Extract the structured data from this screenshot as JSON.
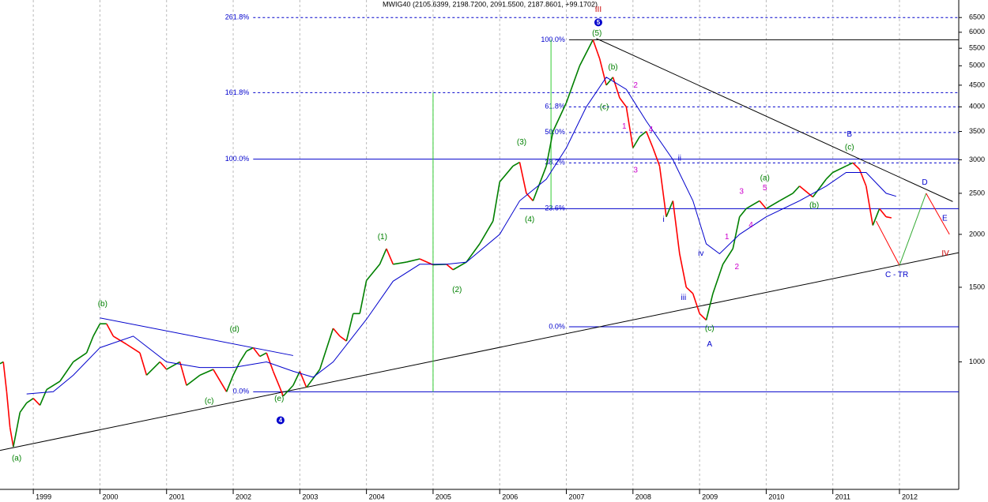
{
  "chart_data": {
    "type": "line",
    "title": "MWIG40 (2105.6399, 2198.7200, 2091.5500, 2187.8601, +99.1702)",
    "log_scale": true,
    "xlim": [
      1998.5,
      2012.89
    ],
    "ylim": [
      500,
      7150
    ],
    "xticks": [
      1999,
      2000,
      2001,
      2002,
      2003,
      2004,
      2005,
      2006,
      2007,
      2008,
      2009,
      2010,
      2011,
      2012
    ],
    "yticks": [
      1000,
      1500,
      2000,
      2500,
      3000,
      3500,
      4000,
      4500,
      5000,
      5500,
      6000,
      6500
    ],
    "grid": true,
    "series": [
      {
        "color": "#008000",
        "down_color": "#ff0000",
        "x": [
          1998.5,
          1998.55,
          1998.6,
          1998.65,
          1998.7,
          1998.8,
          1998.9,
          1999.0,
          1999.1,
          1999.2,
          1999.4,
          1999.6,
          1999.8,
          1999.9,
          2000.0,
          2000.1,
          2000.2,
          2000.4,
          2000.6,
          2000.7,
          2000.9,
          2001.0,
          2001.2,
          2001.3,
          2001.5,
          2001.7,
          2001.9,
          2002.0,
          2002.1,
          2002.2,
          2002.3,
          2002.4,
          2002.5,
          2002.6,
          2002.7,
          2002.75,
          2002.9,
          2003.0,
          2003.1,
          2003.3,
          2003.5,
          2003.6,
          2003.7,
          2003.8,
          2003.9,
          2004.0,
          2004.2,
          2004.3,
          2004.4,
          2004.6,
          2004.8,
          2005.0,
          2005.2,
          2005.3,
          2005.5,
          2005.7,
          2005.9,
          2006.0,
          2006.2,
          2006.3,
          2006.4,
          2006.5,
          2006.7,
          2006.8,
          2007.0,
          2007.2,
          2007.4,
          2007.5,
          2007.6,
          2007.7,
          2007.8,
          2007.9,
          2008.0,
          2008.1,
          2008.2,
          2008.3,
          2008.4,
          2008.5,
          2008.6,
          2008.7,
          2008.8,
          2008.9,
          2009.0,
          2009.1,
          2009.2,
          2009.35,
          2009.5,
          2009.6,
          2009.7,
          2009.9,
          2010.0,
          2010.2,
          2010.4,
          2010.5,
          2010.7,
          2010.9,
          2011.0,
          2011.2,
          2011.3,
          2011.4,
          2011.5,
          2011.6,
          2011.7,
          2011.8,
          2011.88
        ],
        "values": [
          990,
          1000,
          850,
          700,
          630,
          760,
          800,
          820,
          790,
          860,
          900,
          1000,
          1050,
          1150,
          1230,
          1230,
          1150,
          1100,
          1050,
          930,
          1000,
          960,
          1000,
          880,
          930,
          960,
          850,
          930,
          1000,
          1060,
          1080,
          1030,
          1050,
          950,
          870,
          830,
          880,
          950,
          870,
          960,
          1200,
          1150,
          1120,
          1300,
          1300,
          1556,
          1700,
          1850,
          1700,
          1720,
          1750,
          1695,
          1700,
          1650,
          1720,
          1900,
          2150,
          2660,
          2900,
          2960,
          2500,
          2400,
          2900,
          3500,
          4090,
          5000,
          5760,
          5200,
          4500,
          4700,
          4200,
          4000,
          3200,
          3400,
          3500,
          3200,
          2900,
          2200,
          2400,
          1800,
          1500,
          1450,
          1300,
          1255,
          1450,
          1700,
          1850,
          2200,
          2300,
          2400,
          2300,
          2400,
          2500,
          2600,
          2450,
          2700,
          2800,
          2900,
          2950,
          2850,
          2600,
          2100,
          2300,
          2200,
          2187.8601
        ]
      },
      {
        "color": "#0000cc",
        "x": [
          1998.9,
          1999.3,
          1999.6,
          2000.0,
          2000.5,
          2001.0,
          2001.5,
          2002.0,
          2002.5,
          2002.9,
          2003.2,
          2003.5,
          2004.0,
          2004.4,
          2004.8,
          2005.2,
          2005.5,
          2006.0,
          2006.3,
          2006.7,
          2007.0,
          2007.3,
          2007.6,
          2007.9,
          2008.2,
          2008.6,
          2008.9,
          2009.1,
          2009.3,
          2009.6,
          2010.0,
          2010.5,
          2010.9,
          2011.2,
          2011.5,
          2011.8,
          2011.95
        ],
        "values": [
          840,
          850,
          930,
          1080,
          1150,
          1000,
          970,
          970,
          1000,
          950,
          920,
          1000,
          1260,
          1550,
          1700,
          1700,
          1720,
          2000,
          2400,
          2700,
          3200,
          4000,
          4700,
          4400,
          3700,
          3000,
          2400,
          1900,
          1800,
          2000,
          2200,
          2400,
          2600,
          2800,
          2800,
          2500,
          2460
        ]
      }
    ],
    "levels": [
      {
        "value": 6500,
        "label": "261.8%",
        "x": [
          2002.3,
          2012.89
        ],
        "color": "#0000cc",
        "dashed": true
      },
      {
        "value": 4320,
        "label": "161.8%",
        "x": [
          2002.3,
          2012.89
        ],
        "color": "#0000cc",
        "dashed": true
      },
      {
        "value": 3010,
        "label": "100.0%",
        "x": [
          2002.3,
          2012.89
        ],
        "color": "#0000cc",
        "dashed": false
      },
      {
        "value": 850,
        "label": "0.0%",
        "x": [
          2002.3,
          2012.89
        ],
        "color": "#0000cc",
        "dashed": false
      },
      {
        "value": 5760,
        "label": "100.0%",
        "x": [
          2007.04,
          2012.89
        ],
        "color": "#000000",
        "dashed": false
      },
      {
        "value": 4000,
        "label": "61.8%",
        "x": [
          2007.04,
          2012.89
        ],
        "color": "#0000cc",
        "dashed": true
      },
      {
        "value": 3480,
        "label": "50.0%",
        "x": [
          2007.04,
          2012.89
        ],
        "color": "#0000cc",
        "dashed": true
      },
      {
        "value": 2950,
        "label": "38.2%",
        "x": [
          2007.04,
          2012.89
        ],
        "color": "#0000cc",
        "dashed": true
      },
      {
        "value": 2300,
        "label": "23.6%",
        "x": [
          2007.04,
          2012.89
        ],
        "color": "#0000cc",
        "dashed": false
      },
      {
        "value": 1210,
        "label": "0.0%",
        "x": [
          2007.04,
          2012.89
        ],
        "color": "#0000cc",
        "dashed": false
      }
    ],
    "lines": [
      {
        "x": [
          1998.5,
          2012.89
        ],
        "y": [
          618,
          1810
        ],
        "color": "#000000"
      },
      {
        "x": [
          2007.45,
          2012.8
        ],
        "y": [
          5800,
          2390
        ],
        "color": "#000000"
      },
      {
        "x": [
          2000.0,
          2002.9
        ],
        "y": [
          1270,
          1035
        ],
        "color": "#0000cc"
      },
      {
        "x": [
          2005.0,
          2005.0
        ],
        "y": [
          4320,
          850
        ],
        "color": "#33cc33"
      },
      {
        "x": [
          2006.77,
          2006.77
        ],
        "y": [
          5760,
          2300
        ],
        "color": "#33cc33"
      },
      {
        "x": [
          2006.3,
          2007.04
        ],
        "y": [
          2300,
          2300
        ],
        "color": "#0000cc"
      },
      {
        "x": [
          2011.65,
          2012.0
        ],
        "y": [
          2150,
          1690
        ],
        "color": "#ff0000"
      },
      {
        "x": [
          2012.0,
          2012.4
        ],
        "y": [
          1690,
          2500
        ],
        "color": "#33aa33"
      },
      {
        "x": [
          2012.4,
          2012.75
        ],
        "y": [
          2500,
          2000
        ],
        "color": "#ff0000"
      }
    ],
    "annotations": [
      {
        "text": "(a)",
        "x": 1998.75,
        "y": 592,
        "color": "#008000"
      },
      {
        "text": "(b)",
        "x": 2000.04,
        "y": 1368,
        "color": "#008000"
      },
      {
        "text": "(c)",
        "x": 2001.64,
        "y": 807,
        "color": "#008000"
      },
      {
        "text": "(d)",
        "x": 2002.02,
        "y": 1192,
        "color": "#008000"
      },
      {
        "text": "(e)",
        "x": 2002.69,
        "y": 817,
        "color": "#008000"
      },
      {
        "text": "4",
        "x": 2002.71,
        "y": 728,
        "color": "#0000cc",
        "circle": true
      },
      {
        "text": "(1)",
        "x": 2004.24,
        "y": 1970,
        "color": "#008000"
      },
      {
        "text": "(2)",
        "x": 2005.36,
        "y": 1478,
        "color": "#008000"
      },
      {
        "text": "(3)",
        "x": 2006.33,
        "y": 3300,
        "color": "#008000"
      },
      {
        "text": "(4)",
        "x": 2006.45,
        "y": 2165,
        "color": "#008000"
      },
      {
        "text": "(5)",
        "x": 2007.46,
        "y": 5960,
        "color": "#008000"
      },
      {
        "text": "5",
        "x": 2007.48,
        "y": 6330,
        "color": "#0000cc",
        "circle": true
      },
      {
        "text": "III",
        "x": 2007.48,
        "y": 6780,
        "color": "#cc0000"
      },
      {
        "text": "(b)",
        "x": 2007.7,
        "y": 4960,
        "color": "#008000"
      },
      {
        "text": "(c)",
        "x": 2007.57,
        "y": 3990,
        "color": "#008000"
      },
      {
        "text": "1",
        "x": 2007.87,
        "y": 3590,
        "color": "#cc00cc"
      },
      {
        "text": "2",
        "x": 2008.04,
        "y": 4490,
        "color": "#cc00cc"
      },
      {
        "text": "3",
        "x": 2008.04,
        "y": 2830,
        "color": "#cc00cc"
      },
      {
        "text": "4",
        "x": 2008.27,
        "y": 3530,
        "color": "#cc00cc"
      },
      {
        "text": "i",
        "x": 2008.46,
        "y": 2165,
        "color": "#0000cc"
      },
      {
        "text": "ii",
        "x": 2008.7,
        "y": 3020,
        "color": "#0000cc"
      },
      {
        "text": "iii",
        "x": 2008.76,
        "y": 1415,
        "color": "#0000cc"
      },
      {
        "text": "iv",
        "x": 2009.02,
        "y": 1800,
        "color": "#0000cc"
      },
      {
        "text": "(c)",
        "x": 2009.15,
        "y": 1197,
        "color": "#008000"
      },
      {
        "text": "A",
        "x": 2009.15,
        "y": 1099,
        "color": "#0000cc"
      },
      {
        "text": "1",
        "x": 2009.41,
        "y": 1970,
        "color": "#cc00cc"
      },
      {
        "text": "2",
        "x": 2009.56,
        "y": 1675,
        "color": "#cc00cc"
      },
      {
        "text": "3",
        "x": 2009.63,
        "y": 2520,
        "color": "#cc00cc"
      },
      {
        "text": "4",
        "x": 2009.77,
        "y": 2100,
        "color": "#cc00cc"
      },
      {
        "text": "5",
        "x": 2009.98,
        "y": 2570,
        "color": "#cc00cc"
      },
      {
        "text": "(a)",
        "x": 2009.98,
        "y": 2710,
        "color": "#008000"
      },
      {
        "text": "(b)",
        "x": 2010.72,
        "y": 2340,
        "color": "#008000"
      },
      {
        "text": "(c)",
        "x": 2011.25,
        "y": 3210,
        "color": "#008000"
      },
      {
        "text": "B",
        "x": 2011.25,
        "y": 3440,
        "color": "#0000cc"
      },
      {
        "text": "D",
        "x": 2012.38,
        "y": 2650,
        "color": "#0000cc"
      },
      {
        "text": "E",
        "x": 2012.68,
        "y": 2180,
        "color": "#0000cc"
      },
      {
        "text": "IV",
        "x": 2012.69,
        "y": 1800,
        "color": "#cc0000"
      },
      {
        "text": "C - TR",
        "x": 2011.96,
        "y": 1605,
        "color": "#0000cc"
      }
    ]
  }
}
